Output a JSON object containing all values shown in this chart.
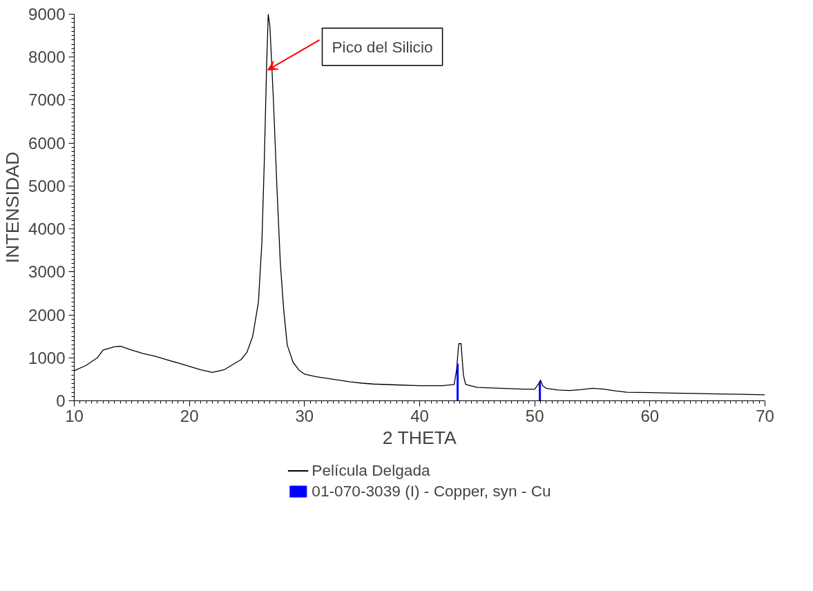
{
  "chart_data": {
    "type": "line",
    "xlabel": "2 THETA",
    "ylabel": "INTENSIDAD",
    "xlim": [
      10,
      70
    ],
    "xticks": [
      10,
      20,
      30,
      40,
      50,
      60,
      70
    ],
    "ylim": [
      0,
      9000
    ],
    "yticks": [
      0,
      1000,
      2000,
      3000,
      4000,
      5000,
      6000,
      7000,
      8000,
      9000
    ],
    "grid": false,
    "legend": "bottom",
    "annotations": [
      {
        "text": "Pico del Silicio",
        "x": 26.8,
        "y": 7700
      }
    ],
    "series": [
      {
        "name": "Película Delgada",
        "color": "#000000",
        "x": [
          10,
          11,
          12,
          12.5,
          13,
          13.5,
          14,
          15,
          16,
          17,
          18,
          19,
          20,
          21,
          22,
          23,
          24,
          24.5,
          25,
          25.5,
          26,
          26.3,
          26.5,
          26.7,
          26.85,
          27,
          27.3,
          27.6,
          27.9,
          28.2,
          28.5,
          29,
          29.5,
          30,
          31,
          32,
          33,
          34,
          35,
          36,
          38,
          40,
          42,
          43,
          43.2,
          43.4,
          43.6,
          43.8,
          44,
          45,
          47,
          49,
          50,
          50.3,
          50.5,
          50.7,
          51,
          52,
          53,
          54,
          55,
          56,
          57,
          58,
          60,
          62,
          64,
          66,
          68,
          70
        ],
        "values": [
          700,
          820,
          1000,
          1180,
          1220,
          1260,
          1270,
          1180,
          1100,
          1040,
          960,
          880,
          800,
          720,
          660,
          720,
          880,
          960,
          1130,
          1500,
          2300,
          3700,
          5500,
          7700,
          9000,
          8700,
          7000,
          5000,
          3200,
          2100,
          1300,
          900,
          720,
          620,
          560,
          520,
          480,
          440,
          410,
          390,
          370,
          350,
          350,
          380,
          700,
          1330,
          1330,
          600,
          380,
          310,
          290,
          270,
          270,
          380,
          480,
          350,
          290,
          250,
          240,
          260,
          290,
          270,
          230,
          200,
          190,
          180,
          170,
          160,
          150,
          140
        ]
      },
      {
        "name": "01-070-3039 (I) - Copper, syn - Cu",
        "color": "#0000ff",
        "type": "bar",
        "x": [
          43.3,
          50.45
        ],
        "values": [
          860,
          440
        ]
      }
    ]
  }
}
